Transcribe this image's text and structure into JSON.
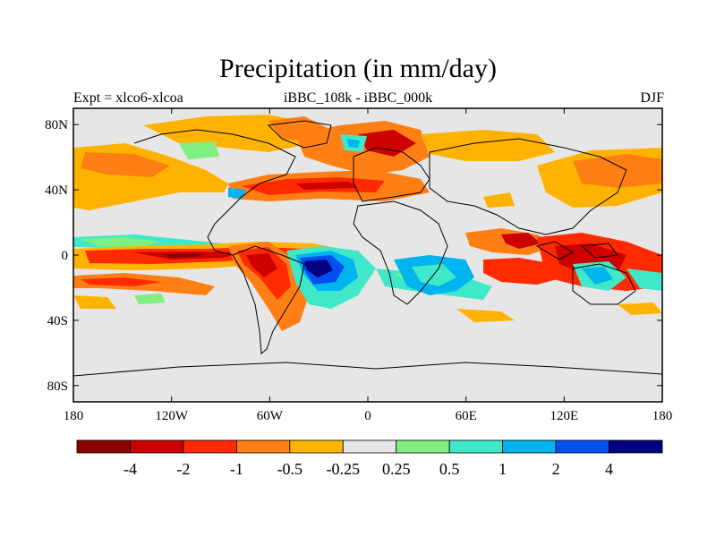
{
  "title": "Precipitation (in mm/day)",
  "subtitle_left": "Expt = xlco6-xlcoa",
  "subtitle_center": "iBBC_108k - iBBC_000k",
  "subtitle_right": "DJF",
  "lat_ticks": [
    "80N",
    "40N",
    "0",
    "40S",
    "80S"
  ],
  "lon_ticks": [
    "180",
    "120W",
    "60W",
    "0",
    "60E",
    "120E",
    "180"
  ],
  "colorbar": {
    "colors": [
      "#8b0000",
      "#cd0000",
      "#ff2a00",
      "#ff7f14",
      "#ffb300",
      "#e6e6e6",
      "#7ff07f",
      "#3fe8c8",
      "#00b4f0",
      "#0050f0",
      "#000080"
    ],
    "labels": [
      "-4",
      "-2",
      "-1",
      "-0.5",
      "-0.25",
      "0.25",
      "0.5",
      "1",
      "2",
      "4"
    ]
  },
  "colors": {
    "ocean_background": "#e6e6e6",
    "coastline": "#000000"
  }
}
